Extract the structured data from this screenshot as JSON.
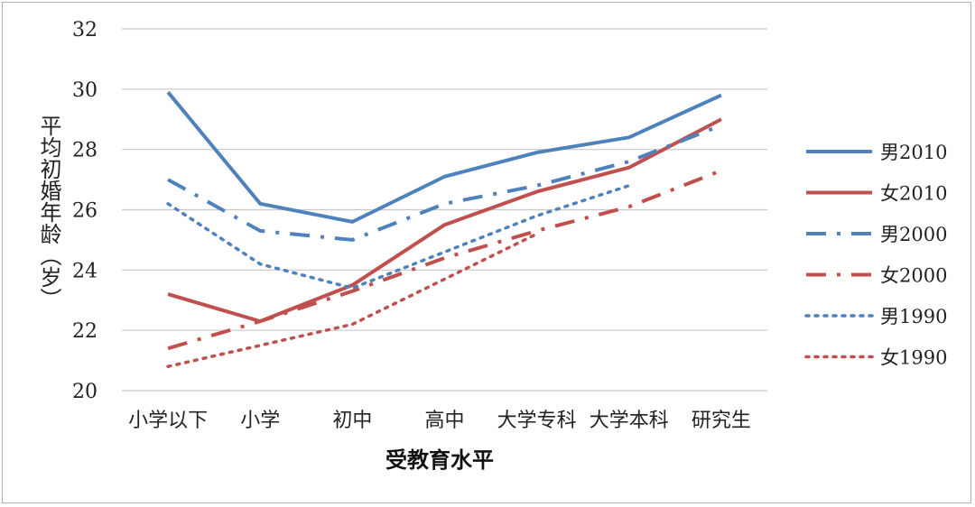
{
  "chart_data": {
    "type": "line",
    "title": "",
    "xlabel": "受教育水平",
    "ylabel": "平均初婚年龄（岁）",
    "ylim": [
      20,
      32
    ],
    "yticks": [
      "20",
      "22",
      "24",
      "26",
      "28",
      "30",
      "32"
    ],
    "categories": [
      "小学以下",
      "小学",
      "初中",
      "高中",
      "大学专科",
      "大学本科",
      "研究生"
    ],
    "grid": true,
    "legend_position": "right",
    "series": [
      {
        "name": "男2010",
        "color": "#4F81BD",
        "style": "solid",
        "values": [
          29.9,
          26.2,
          25.6,
          27.1,
          27.9,
          28.4,
          29.8
        ]
      },
      {
        "name": "女2010",
        "color": "#C0504D",
        "style": "solid",
        "values": [
          23.2,
          22.3,
          23.5,
          25.5,
          26.6,
          27.4,
          29.0
        ]
      },
      {
        "name": "男2000",
        "color": "#4F81BD",
        "style": "dashdot",
        "values": [
          27.0,
          25.3,
          25.0,
          26.2,
          26.8,
          27.6,
          28.8
        ]
      },
      {
        "name": "女2000",
        "color": "#C0504D",
        "style": "dashdot",
        "values": [
          21.4,
          22.3,
          23.3,
          24.4,
          25.3,
          26.1,
          27.3
        ]
      },
      {
        "name": "男1990",
        "color": "#4F81BD",
        "style": "dotted",
        "values": [
          26.2,
          24.2,
          23.4,
          24.6,
          25.8,
          26.8,
          null
        ]
      },
      {
        "name": "女1990",
        "color": "#C0504D",
        "style": "dotted",
        "values": [
          20.8,
          21.5,
          22.2,
          23.7,
          25.2,
          null,
          null
        ]
      }
    ]
  }
}
